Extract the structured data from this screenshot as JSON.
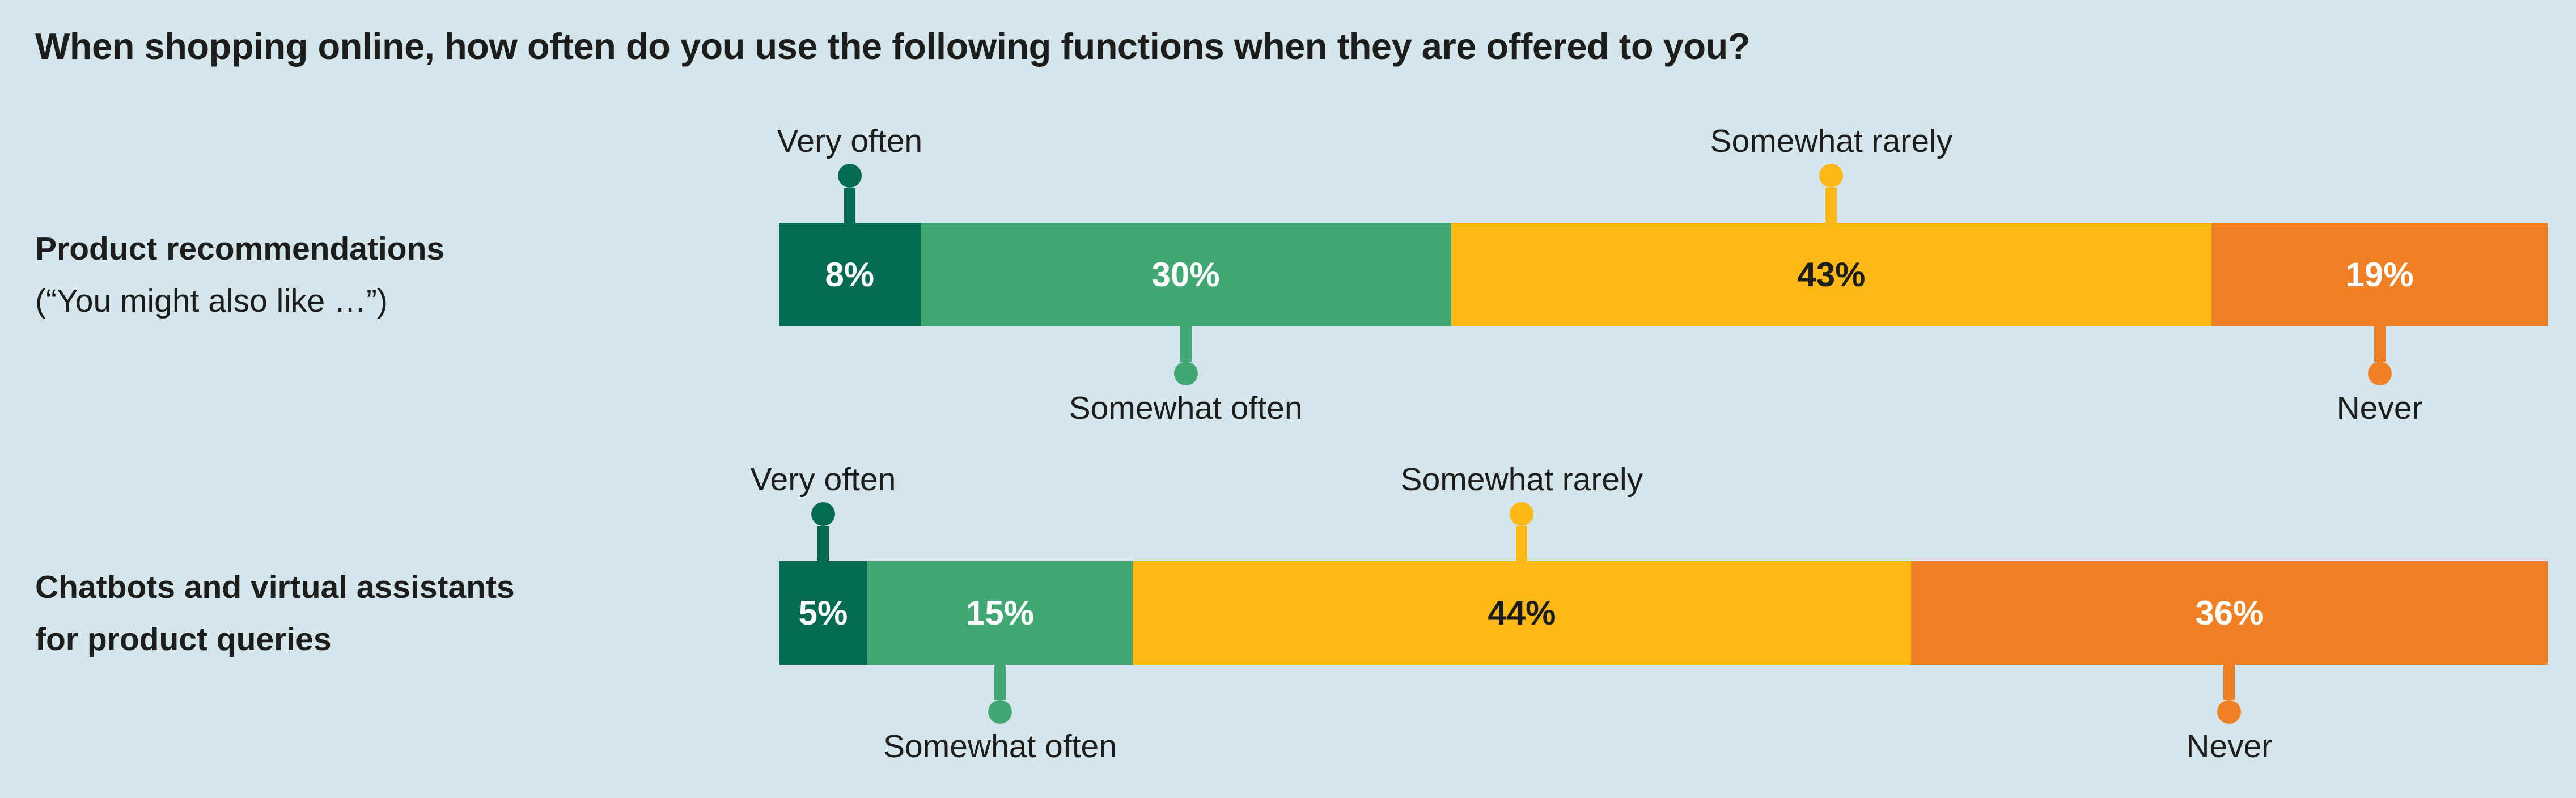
{
  "title": "When shopping online, how often do you use the following functions when they are offered to you?",
  "colors": {
    "background": "#d4e6ec",
    "text": "#1d1d1b",
    "segment_colors": [
      "#046a52",
      "#42a873",
      "#fbb817",
      "#ef8023"
    ],
    "value_text_colors": [
      "#ffffff",
      "#ffffff",
      "#1d1d1b",
      "#ffffff"
    ]
  },
  "chart_data": {
    "type": "bar",
    "variant": "horizontal-stacked-100-percent",
    "title": "When shopping online, how often do you use the following functions when they are offered to you?",
    "unit": "%",
    "xlim": [
      0,
      100
    ],
    "grid": false,
    "legend_position": "inline-callouts",
    "categories": [
      "Very often",
      "Somewhat often",
      "Somewhat rarely",
      "Never"
    ],
    "rows": [
      {
        "label_lines": [
          "Product recommendations",
          "(“You might also like …”)"
        ],
        "label_bold_lines": [
          true,
          false
        ],
        "values": [
          8,
          30,
          43,
          19
        ],
        "value_labels": [
          "8%",
          "30%",
          "43%",
          "19%"
        ],
        "callouts": [
          {
            "segment": 0,
            "position": "above",
            "label": "Very often"
          },
          {
            "segment": 2,
            "position": "above",
            "label": "Somewhat rarely"
          },
          {
            "segment": 1,
            "position": "below",
            "label": "Somewhat often"
          },
          {
            "segment": 3,
            "position": "below",
            "label": "Never"
          }
        ]
      },
      {
        "label_lines": [
          "Chatbots and virtual assistants",
          "for product queries"
        ],
        "label_bold_lines": [
          true,
          true
        ],
        "values": [
          5,
          15,
          44,
          36
        ],
        "value_labels": [
          "5%",
          "15%",
          "44%",
          "36%"
        ],
        "callouts": [
          {
            "segment": 0,
            "position": "above",
            "label": "Very often"
          },
          {
            "segment": 2,
            "position": "above",
            "label": "Somewhat rarely"
          },
          {
            "segment": 1,
            "position": "below",
            "label": "Somewhat often"
          },
          {
            "segment": 3,
            "position": "below",
            "label": "Never"
          }
        ]
      }
    ]
  }
}
